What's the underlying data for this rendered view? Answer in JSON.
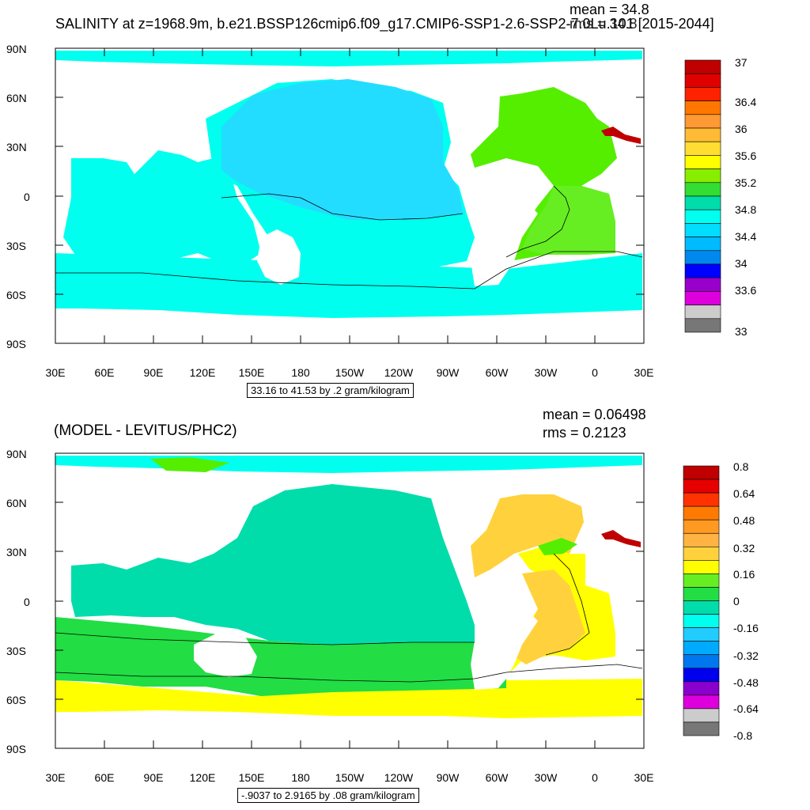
{
  "top": {
    "title": "SALINITY at z=1968.9m, b.e21.BSSP126cmip6.f09_g17.CMIP6-SSP1-2.6-SSP2-7.0Lu.101 [2015-2044]",
    "mean_label": "mean = 34.8",
    "rms_label": "rms = 34.8",
    "range_label": "33.16 to 41.53 by .2 gram/kilogram",
    "colorbar_labels": [
      "37",
      "36.4",
      "36",
      "35.6",
      "35.2",
      "34.8",
      "34.4",
      "34",
      "33.6",
      "33"
    ]
  },
  "bottom": {
    "title": "(MODEL - LEVITUS/PHC2)",
    "mean_label": "mean = 0.06498",
    "rms_label": "rms = 0.2123",
    "range_label": "-.9037 to 2.9165 by .08 gram/kilogram",
    "colorbar_labels": [
      "0.8",
      "0.64",
      "0.48",
      "0.32",
      "0.16",
      "0",
      "-0.16",
      "-0.32",
      "-0.48",
      "-0.64",
      "-0.8"
    ]
  },
  "axes": {
    "lat_labels": [
      "90N",
      "60N",
      "30N",
      "0",
      "30S",
      "60S",
      "90S"
    ],
    "lon_labels": [
      "30E",
      "60E",
      "90E",
      "120E",
      "150E",
      "180",
      "150W",
      "120W",
      "90W",
      "60W",
      "30W",
      "0",
      "30E"
    ]
  },
  "colors": {
    "top_palette": [
      "#bf0000",
      "#e00000",
      "#ff2200",
      "#ff7700",
      "#ff9933",
      "#ffbb33",
      "#ffdd33",
      "#ffff00",
      "#88ee00",
      "#33dd33",
      "#00ddaa",
      "#00ffee",
      "#00ddff",
      "#00bbff",
      "#0088ee",
      "#0000ff",
      "#9900cc",
      "#dd00dd",
      "#cccccc",
      "#777777"
    ],
    "bottom_palette": [
      "#c00000",
      "#e60000",
      "#ff3300",
      "#ff7a00",
      "#ff9922",
      "#ffb343",
      "#ffd23d",
      "#ffff00",
      "#66ee22",
      "#22dd44",
      "#00ddaa",
      "#00ffee",
      "#22ccff",
      "#00aaff",
      "#0077ee",
      "#0000ee",
      "#8a00cc",
      "#dd00dd",
      "#cccccc",
      "#777777"
    ],
    "land": "#ffffff"
  }
}
